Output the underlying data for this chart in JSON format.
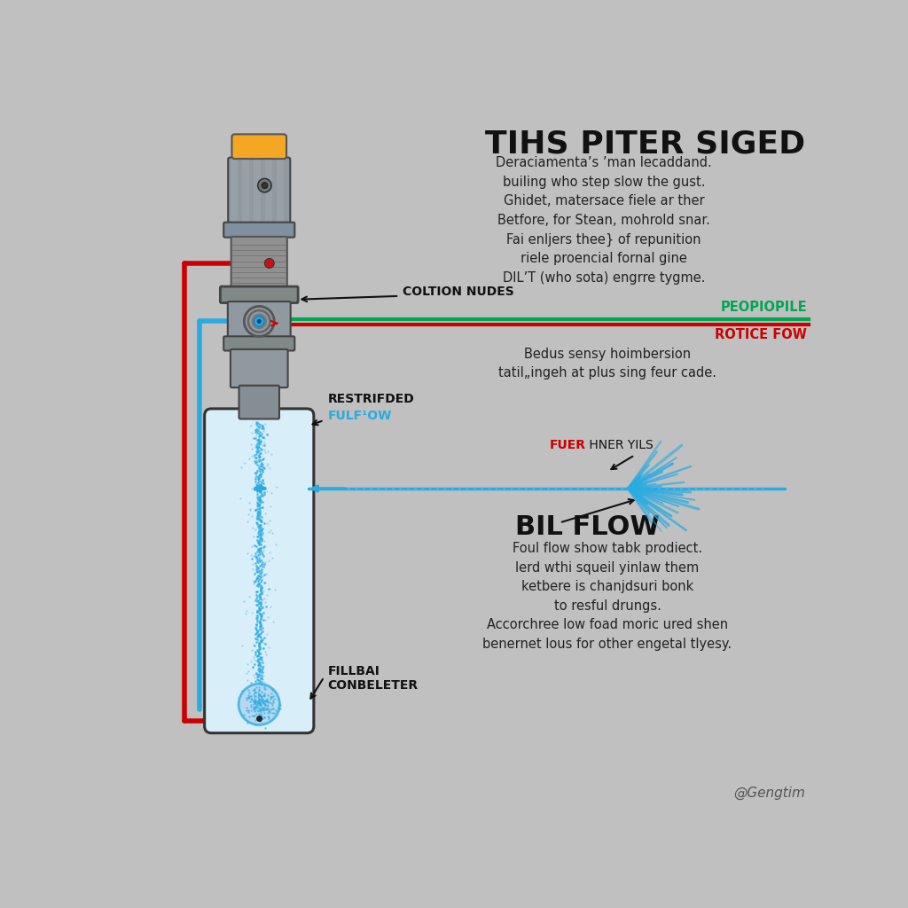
{
  "bg_color": "#c0c0c0",
  "title": "TIHS PITER SIGED",
  "title_fontsize": 26,
  "body_text_1": "Deraciamenta’s ’man lecaddand.\nbuiling who step slow the gust.\nGhidet, matersace fiele ar ther\nBetfore, for Stean, mohrold snar.\nFai enljers thee} of repunition\nriele proencial fornal gine\nDIL’T (who sota) engrre tygme.",
  "body_text_2": "Bedus sensy hoimbersion\ntatil„ingeh at plus sing feur cade.",
  "body_text_3": "Foul flow show tabk prodiect.\nlerd wthi squeil yinlaw them\nketbere is chanjdsuri bonk\nto resful drungs.\nAccorchree low foad moric ured shen\nbenernet lous for other engetal tlyesy.",
  "label_coltion": "COLTION NUDES",
  "label_restricted_black": "RESTRIFDED",
  "label_restricted_blue": "FULF¹OW",
  "label_restricted_color2": "#29abe2",
  "label_fillbai": "FILLBAI\nCONBELETER",
  "label_fuer_red": "FUER",
  "label_fuer_black": " HNER YILS",
  "label_bil_flow": "BIL FLOW",
  "label_peopiopile": "PEOPIOPILE",
  "label_peopiopile_color": "#00a651",
  "label_rotice": "ROTICE FOW",
  "label_rotice_color": "#cc0000",
  "watermark": "@Gengtim",
  "green_line_color": "#00a651",
  "red_line_color": "#cc0000",
  "blue_line_color": "#29abe2",
  "injector_silver": "#a0a8b0",
  "injector_dark": "#606870",
  "orange_top_color": "#f5a623",
  "cylinder_fill": "#d8eef8",
  "cylinder_border": "#333333"
}
